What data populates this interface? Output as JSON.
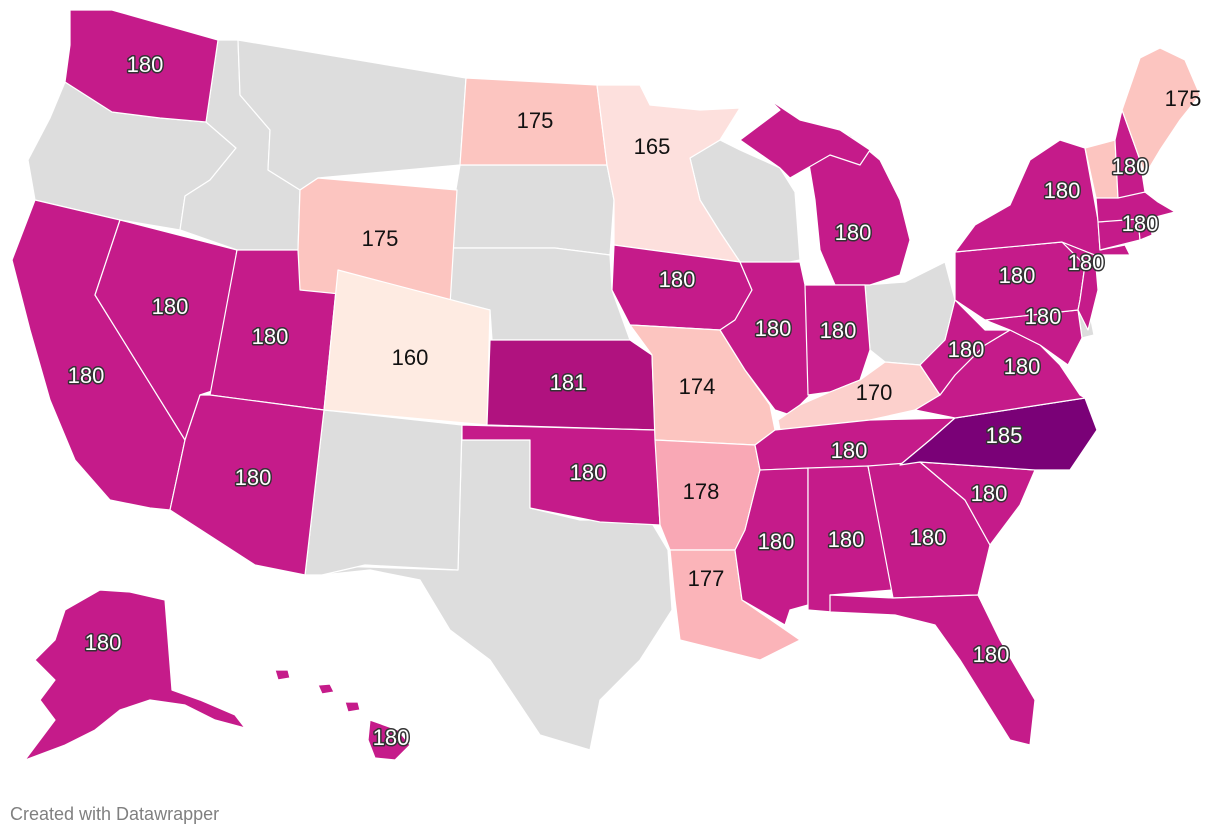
{
  "map": {
    "states": [
      {
        "id": "WA",
        "value": "180",
        "color": "#c51b8a"
      },
      {
        "id": "OR",
        "value": null,
        "color": "#dddddd"
      },
      {
        "id": "CA",
        "value": "180",
        "color": "#c51b8a"
      },
      {
        "id": "NV",
        "value": "180",
        "color": "#c51b8a"
      },
      {
        "id": "ID",
        "value": null,
        "color": "#dddddd"
      },
      {
        "id": "MT",
        "value": null,
        "color": "#dddddd"
      },
      {
        "id": "WY",
        "value": "175",
        "color": "#fcc5c0"
      },
      {
        "id": "UT",
        "value": "180",
        "color": "#c51b8a"
      },
      {
        "id": "AZ",
        "value": "180",
        "color": "#c51b8a"
      },
      {
        "id": "CO",
        "value": "160",
        "color": "#feebe2"
      },
      {
        "id": "NM",
        "value": null,
        "color": "#dddddd"
      },
      {
        "id": "ND",
        "value": "175",
        "color": "#fcc5c0"
      },
      {
        "id": "SD",
        "value": null,
        "color": "#dddddd"
      },
      {
        "id": "NE",
        "value": null,
        "color": "#dddddd"
      },
      {
        "id": "KS",
        "value": "181",
        "color": "#b0127f"
      },
      {
        "id": "OK",
        "value": "180",
        "color": "#c51b8a"
      },
      {
        "id": "TX",
        "value": null,
        "color": "#dddddd"
      },
      {
        "id": "MN",
        "value": "165",
        "color": "#fde0dd"
      },
      {
        "id": "IA",
        "value": "180",
        "color": "#c51b8a"
      },
      {
        "id": "MO",
        "value": "174",
        "color": "#fcc5c0"
      },
      {
        "id": "AR",
        "value": "178",
        "color": "#f9a8b5"
      },
      {
        "id": "LA",
        "value": "177",
        "color": "#fbb4b9"
      },
      {
        "id": "WI",
        "value": null,
        "color": "#dddddd"
      },
      {
        "id": "IL",
        "value": "180",
        "color": "#c51b8a"
      },
      {
        "id": "MI",
        "value": "180",
        "color": "#c51b8a"
      },
      {
        "id": "IN",
        "value": "180",
        "color": "#c51b8a"
      },
      {
        "id": "OH",
        "value": null,
        "color": "#dddddd"
      },
      {
        "id": "KY",
        "value": "170",
        "color": "#fcd0cc"
      },
      {
        "id": "TN",
        "value": "180",
        "color": "#c51b8a"
      },
      {
        "id": "MS",
        "value": "180",
        "color": "#c51b8a"
      },
      {
        "id": "AL",
        "value": "180",
        "color": "#c51b8a"
      },
      {
        "id": "GA",
        "value": "180",
        "color": "#c51b8a"
      },
      {
        "id": "FL",
        "value": "180",
        "color": "#c51b8a"
      },
      {
        "id": "SC",
        "value": "180",
        "color": "#c51b8a"
      },
      {
        "id": "NC",
        "value": "185",
        "color": "#7a0177"
      },
      {
        "id": "VA",
        "value": "180",
        "color": "#c51b8a"
      },
      {
        "id": "WV",
        "value": "180",
        "color": "#c51b8a"
      },
      {
        "id": "MD",
        "value": "180",
        "color": "#c51b8a"
      },
      {
        "id": "DE",
        "value": null,
        "color": "#dddddd"
      },
      {
        "id": "PA",
        "value": "180",
        "color": "#c51b8a"
      },
      {
        "id": "NJ",
        "value": "180",
        "color": "#c51b8a"
      },
      {
        "id": "NY",
        "value": "180",
        "color": "#c51b8a"
      },
      {
        "id": "CT",
        "value": null,
        "color": "#c51b8a"
      },
      {
        "id": "RI",
        "value": null,
        "color": "#c51b8a"
      },
      {
        "id": "MA",
        "value": "180",
        "color": "#c51b8a"
      },
      {
        "id": "VT",
        "value": null,
        "color": "#fcc5c0"
      },
      {
        "id": "NH",
        "value": "180",
        "color": "#c51b8a"
      },
      {
        "id": "ME",
        "value": "175",
        "color": "#fcc5c0"
      },
      {
        "id": "AK",
        "value": "180",
        "color": "#c51b8a"
      },
      {
        "id": "HI",
        "value": "180",
        "color": "#c51b8a"
      }
    ]
  },
  "footer": {
    "credit": "Created with Datawrapper"
  }
}
